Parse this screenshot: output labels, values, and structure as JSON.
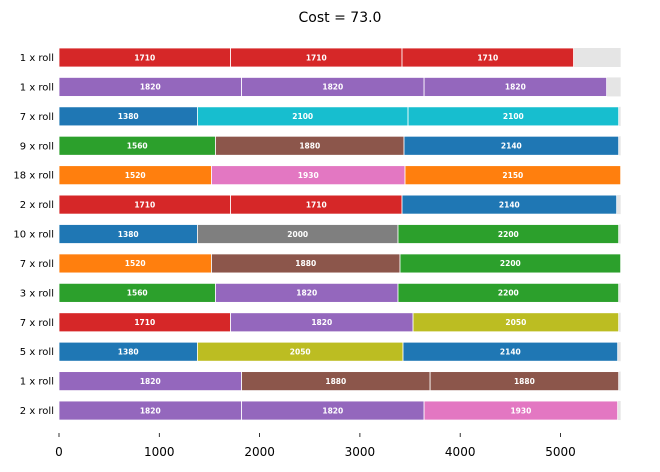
{
  "chart_data": {
    "type": "bar",
    "orientation": "horizontal",
    "stacked": true,
    "title": "Cost = 73.0",
    "xlabel": "",
    "ylabel": "",
    "xlim": [
      0,
      5600
    ],
    "xticks": [
      "0",
      "1000",
      "2000",
      "3000",
      "4000",
      "5000"
    ],
    "roll_length": 5600,
    "colors": {
      "1380": "#1f77b4",
      "1520": "#ff7f0e",
      "1560": "#2ca02c",
      "1710": "#d62728",
      "1820": "#9467bd",
      "1880": "#8c564b",
      "1930": "#e377c2",
      "2000": "#7f7f7f",
      "2050": "#bcbd22",
      "2100": "#17becf",
      "2140": "#1f77b4",
      "2150": "#ff7f0e",
      "2200": "#2ca02c",
      "waste": "#e5e5e5"
    },
    "rows": [
      {
        "label": "1 x roll",
        "pieces": [
          1710,
          1710,
          1710
        ]
      },
      {
        "label": "1 x roll",
        "pieces": [
          1820,
          1820,
          1820
        ]
      },
      {
        "label": "7 x roll",
        "pieces": [
          1380,
          2100,
          2100
        ]
      },
      {
        "label": "9 x roll",
        "pieces": [
          1560,
          1880,
          2140
        ]
      },
      {
        "label": "18 x roll",
        "pieces": [
          1520,
          1930,
          2150
        ]
      },
      {
        "label": "2 x roll",
        "pieces": [
          1710,
          1710,
          2140
        ]
      },
      {
        "label": "10 x roll",
        "pieces": [
          1380,
          2000,
          2200
        ]
      },
      {
        "label": "7 x roll",
        "pieces": [
          1520,
          1880,
          2200
        ]
      },
      {
        "label": "3 x roll",
        "pieces": [
          1560,
          1820,
          2200
        ]
      },
      {
        "label": "7 x roll",
        "pieces": [
          1710,
          1820,
          2050
        ]
      },
      {
        "label": "5 x roll",
        "pieces": [
          1380,
          2050,
          2140
        ]
      },
      {
        "label": "1 x roll",
        "pieces": [
          1820,
          1880,
          1880
        ]
      },
      {
        "label": "2 x roll",
        "pieces": [
          1820,
          1820,
          1930
        ]
      }
    ]
  }
}
